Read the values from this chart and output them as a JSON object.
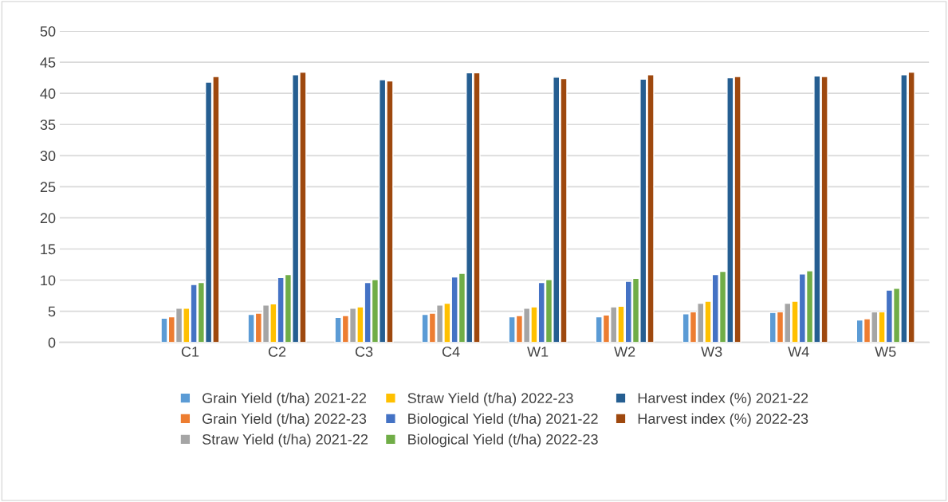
{
  "chart_data": {
    "type": "bar",
    "categories": [
      null,
      "C1",
      "C2",
      "C3",
      "C4",
      "W1",
      "W2",
      "W3",
      "W4",
      "W5"
    ],
    "series": [
      {
        "name": "Grain Yield (t/ha) 2021-22",
        "color": "#5b9bd5",
        "values": [
          null,
          3.9,
          4.5,
          4.0,
          4.5,
          4.1,
          4.1,
          4.6,
          4.8,
          3.6
        ]
      },
      {
        "name": "Grain Yield (t/ha) 2022-23",
        "color": "#ed7d31",
        "values": [
          null,
          4.1,
          4.7,
          4.3,
          4.7,
          4.3,
          4.4,
          4.9,
          4.9,
          3.8
        ]
      },
      {
        "name": "Straw Yield (t/ha) 2021-22",
        "color": "#a5a5a5",
        "values": [
          null,
          5.5,
          6.0,
          5.5,
          6.0,
          5.5,
          5.7,
          6.3,
          6.3,
          4.9
        ]
      },
      {
        "name": "Straw Yield (t/ha) 2022-23",
        "color": "#ffc000",
        "values": [
          null,
          5.5,
          6.2,
          5.7,
          6.3,
          5.7,
          5.8,
          6.6,
          6.6,
          4.9
        ]
      },
      {
        "name": "Biological Yield (t/ha) 2021-22",
        "color": "#4472c4",
        "values": [
          null,
          9.3,
          10.4,
          9.6,
          10.5,
          9.6,
          9.8,
          10.9,
          11.0,
          8.4
        ]
      },
      {
        "name": "Biological Yield (t/ha) 2022-23",
        "color": "#70ad47",
        "values": [
          null,
          9.6,
          10.9,
          10.1,
          11.1,
          10.1,
          10.3,
          11.4,
          11.5,
          8.7
        ]
      },
      {
        "name": "Harvest index (%) 2021-22",
        "color": "#255e91",
        "values": [
          null,
          41.8,
          43.0,
          42.2,
          43.3,
          42.6,
          42.3,
          42.5,
          42.8,
          43.0
        ]
      },
      {
        "name": "Harvest index (%) 2022-23",
        "color": "#9e480e",
        "values": [
          null,
          42.7,
          43.4,
          42.0,
          43.3,
          42.4,
          43.0,
          42.7,
          42.7,
          43.4
        ]
      }
    ],
    "ylim": [
      0,
      50
    ],
    "yticks": [
      0,
      5,
      10,
      15,
      20,
      25,
      30,
      35,
      40,
      45,
      50
    ],
    "grid": "y",
    "legend": "bottom"
  }
}
